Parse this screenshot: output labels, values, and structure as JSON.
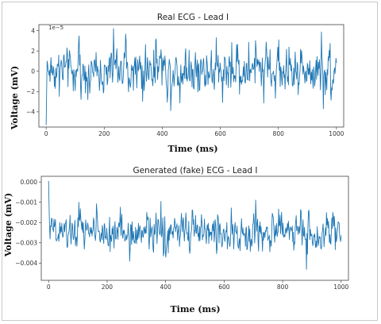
{
  "colors": {
    "series": "#1f77b4"
  },
  "chart_data": [
    {
      "type": "line",
      "title": "Real ECG - Lead I",
      "xlabel": "Time (ms)",
      "ylabel": "Voltage (mV)",
      "offset_label": "1e−5",
      "xlim": [
        -25,
        1025
      ],
      "ylim": [
        -5.5,
        4.6
      ],
      "xticks": [
        0,
        200,
        400,
        600,
        800,
        1000
      ],
      "xtick_labels": [
        "0",
        "200",
        "400",
        "600",
        "800",
        "1000"
      ],
      "yticks": [
        4,
        2,
        0,
        -2,
        -4
      ],
      "ytick_labels": [
        "4",
        "2",
        "0",
        "−2",
        "−4"
      ],
      "series": [
        {
          "x_start": 0,
          "x_end": 1000,
          "n_points": 600,
          "center": 0.1,
          "amplitude": 1.1,
          "spike": 2.4,
          "start_values": [
            -5.3,
            -2.0,
            1.0
          ],
          "notable": {
            "x": 232,
            "y": 4.2
          }
        }
      ]
    },
    {
      "type": "line",
      "title": "Generated (fake) ECG - Lead I",
      "xlabel": "Time (ms)",
      "ylabel": "Voltage (mV)",
      "xlim": [
        -25,
        1025
      ],
      "ylim": [
        -0.00485,
        0.00028
      ],
      "xticks": [
        0,
        200,
        400,
        600,
        800,
        1000
      ],
      "xtick_labels": [
        "0",
        "200",
        "400",
        "600",
        "800",
        "1000"
      ],
      "yticks": [
        0.0,
        -0.001,
        -0.002,
        -0.003,
        -0.004
      ],
      "ytick_labels": [
        "0.000",
        "−0.001",
        "−0.002",
        "−0.003",
        "−0.004"
      ],
      "series": [
        {
          "x_start": 0,
          "x_end": 1000,
          "n_points": 600,
          "center": -0.0025,
          "amplitude": 0.00045,
          "spike": 0.0011,
          "start_values": [
            5e-05,
            -0.0012,
            -0.0022
          ]
        }
      ]
    }
  ]
}
